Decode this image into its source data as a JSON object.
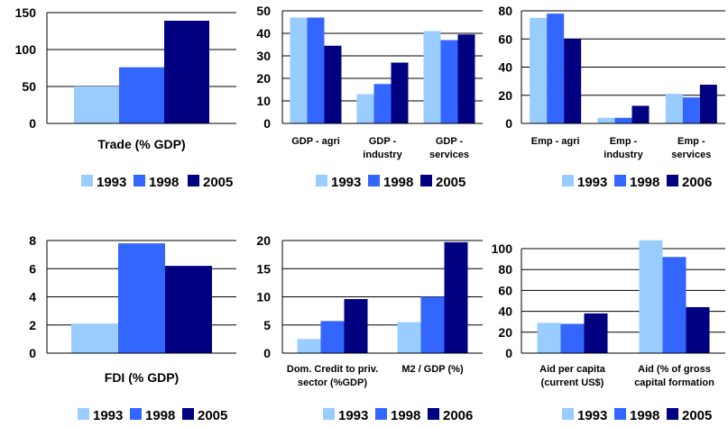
{
  "colors": {
    "c1": "#99ccff",
    "c2": "#3366ff",
    "c3": "#000080"
  },
  "chart_data": [
    {
      "type": "bar",
      "categories": [
        "Trade (% GDP)"
      ],
      "series": [
        {
          "name": "1993",
          "values": [
            50
          ]
        },
        {
          "name": "1998",
          "values": [
            76
          ]
        },
        {
          "name": "2005",
          "values": [
            139
          ]
        }
      ],
      "ylim": [
        0,
        150
      ],
      "yticks": [
        "0",
        "50",
        "100",
        "150"
      ],
      "grid": true,
      "legend": "bottom"
    },
    {
      "type": "bar",
      "categories": [
        "GDP - agri",
        "GDP - industry",
        "GDP - services"
      ],
      "series": [
        {
          "name": "1993",
          "values": [
            47,
            13,
            41
          ]
        },
        {
          "name": "1998",
          "values": [
            47,
            17.5,
            37
          ]
        },
        {
          "name": "2005",
          "values": [
            34.5,
            27,
            39.5
          ]
        }
      ],
      "ylim": [
        0,
        50
      ],
      "yticks": [
        "0",
        "10",
        "20",
        "30",
        "40",
        "50"
      ],
      "grid": true,
      "legend": "bottom"
    },
    {
      "type": "bar",
      "categories": [
        "Emp - agri",
        "Emp - industry",
        "Emp - services"
      ],
      "series": [
        {
          "name": "1993",
          "values": [
            75,
            4,
            21
          ]
        },
        {
          "name": "1998",
          "values": [
            78,
            4,
            18.5
          ]
        },
        {
          "name": "2006",
          "values": [
            60,
            12.5,
            27.5
          ]
        }
      ],
      "ylim": [
        0,
        80
      ],
      "yticks": [
        "0",
        "20",
        "40",
        "60",
        "80"
      ],
      "grid": true,
      "legend": "bottom"
    },
    {
      "type": "bar",
      "categories": [
        "FDI (% GDP)"
      ],
      "series": [
        {
          "name": "1993",
          "values": [
            2.1
          ]
        },
        {
          "name": "1998",
          "values": [
            7.8
          ]
        },
        {
          "name": "2005",
          "values": [
            6.2
          ]
        }
      ],
      "ylim": [
        0,
        8
      ],
      "yticks": [
        "0",
        "2",
        "4",
        "6",
        "8"
      ],
      "grid": true,
      "legend": "bottom"
    },
    {
      "type": "bar",
      "categories": [
        "Dom. Credit to priv. sector (%GDP)",
        "M2 / GDP (%)"
      ],
      "series": [
        {
          "name": "1993",
          "values": [
            2.5,
            5.5
          ]
        },
        {
          "name": "1998",
          "values": [
            5.7,
            10
          ]
        },
        {
          "name": "2006",
          "values": [
            9.6,
            19.7
          ]
        }
      ],
      "ylim": [
        0,
        20
      ],
      "yticks": [
        "0",
        "5",
        "10",
        "15",
        "20"
      ],
      "grid": true,
      "legend": "bottom"
    },
    {
      "type": "bar",
      "categories": [
        "Aid per capita (current US$)",
        "Aid (% of gross capital formation"
      ],
      "series": [
        {
          "name": "1993",
          "values": [
            29,
            108
          ]
        },
        {
          "name": "1998",
          "values": [
            28,
            92
          ]
        },
        {
          "name": "2005",
          "values": [
            38,
            44
          ]
        }
      ],
      "ylim": [
        0,
        100
      ],
      "yticks": [
        "0",
        "20",
        "40",
        "60",
        "80",
        "100"
      ],
      "grid": true,
      "legend": "bottom"
    }
  ]
}
